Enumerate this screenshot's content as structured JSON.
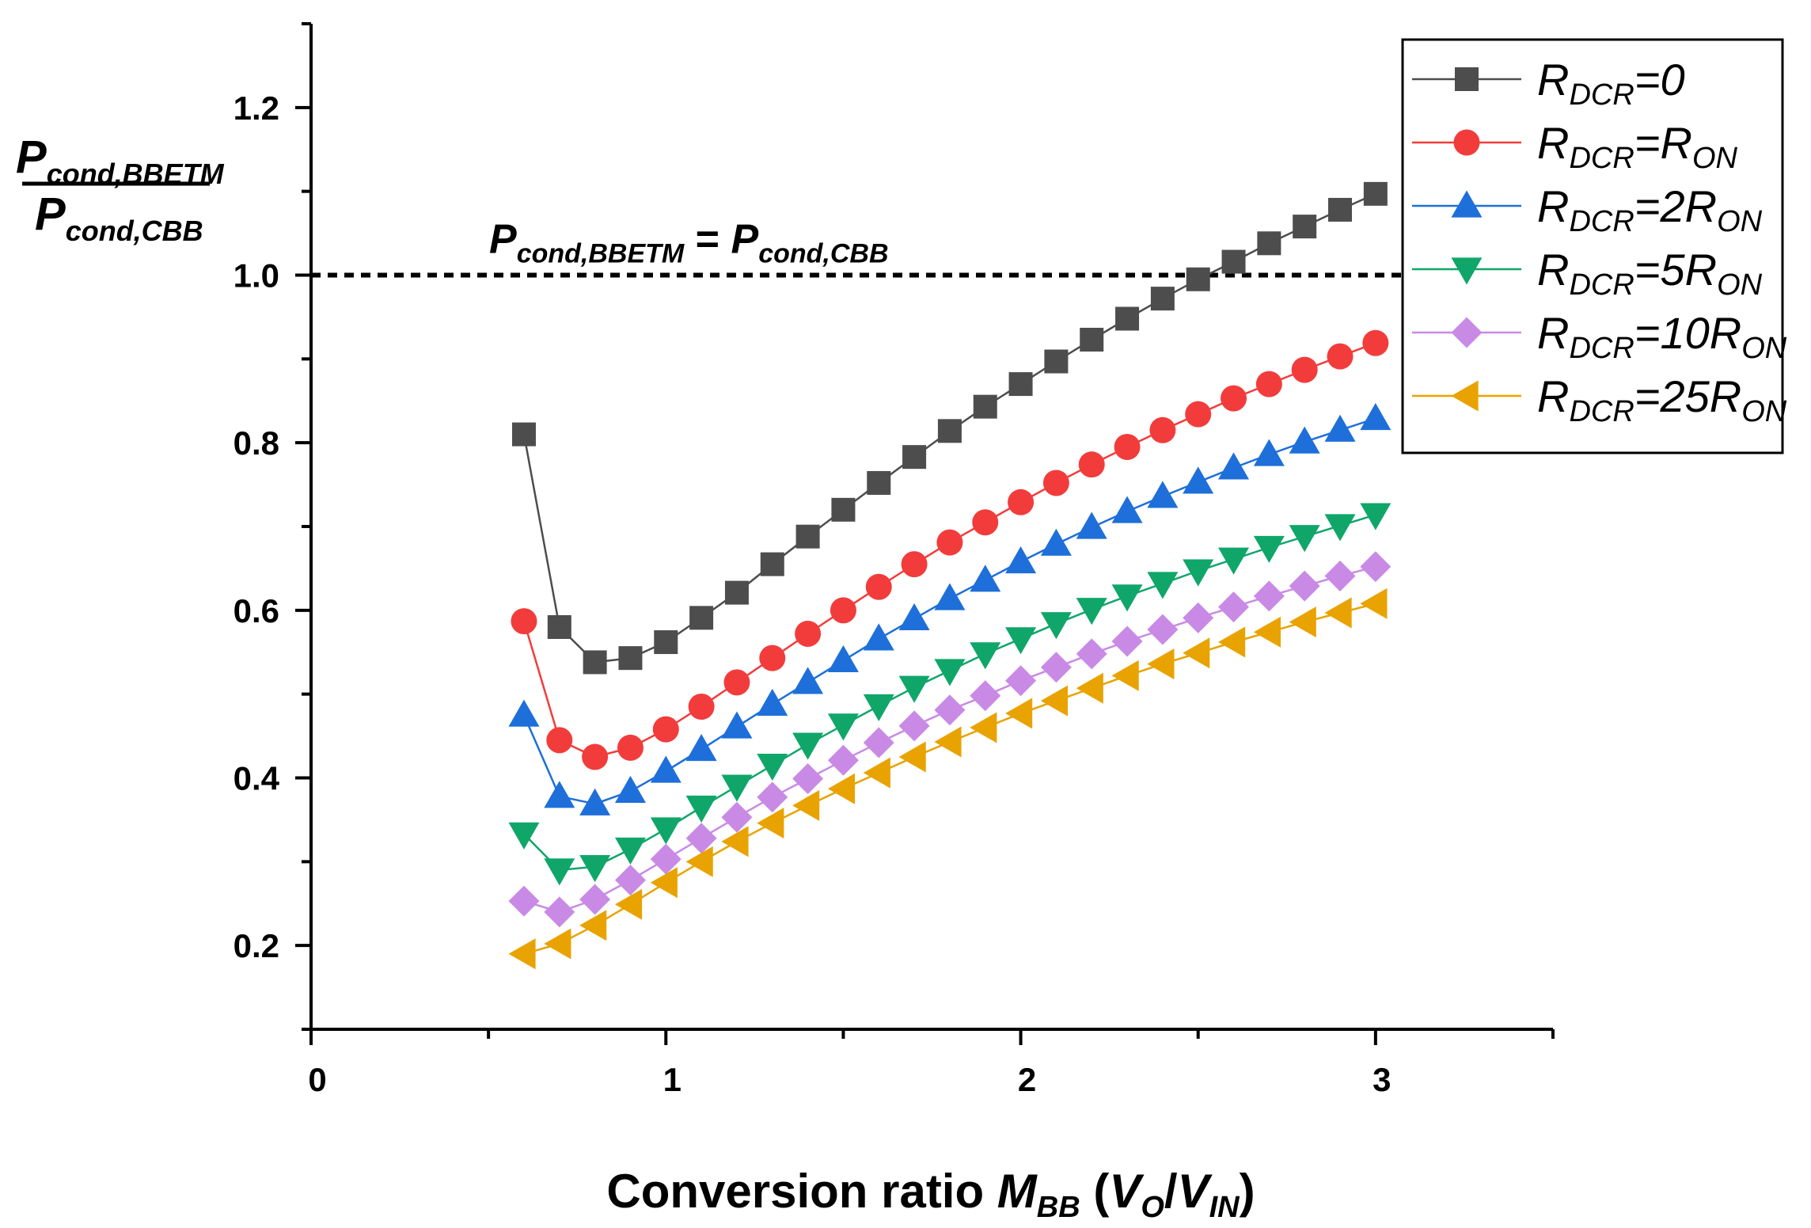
{
  "chart_data": {
    "type": "line",
    "title": "",
    "xlabel": {
      "prefix": "Conversion ratio ",
      "M": "M",
      "M_sub": "BB",
      "open": " (",
      "V1": "V",
      "V1_sub": "O",
      "slash": "/",
      "V2": "V",
      "V2_sub": "IN",
      "close": ")"
    },
    "ylabel": {
      "num": "P",
      "num_sub": "cond,BBETM",
      "den": "P",
      "den_sub": "cond,CBB"
    },
    "xlim": [
      0,
      3.5
    ],
    "ylim": [
      0.1,
      1.3
    ],
    "x_ticks": [
      "0",
      "1",
      "2",
      "3"
    ],
    "y_ticks": [
      "0.2",
      "0.4",
      "0.6",
      "0.8",
      "1.0",
      "1.2"
    ],
    "reference_line": {
      "y": 1.0,
      "label": {
        "left": "P",
        "left_sub": "cond,BBETM",
        "eq": " = ",
        "right": "P",
        "right_sub": "cond,CBB"
      }
    },
    "x": [
      0.6,
      0.7,
      0.8,
      0.9,
      1.0,
      1.1,
      1.2,
      1.3,
      1.4,
      1.5,
      1.6,
      1.7,
      1.8,
      1.9,
      2.0,
      2.1,
      2.2,
      2.3,
      2.4,
      2.5,
      2.6,
      2.7,
      2.8,
      2.9,
      3.0
    ],
    "legend_position": "top-right",
    "series": [
      {
        "name": "RDCR=0",
        "label": {
          "R": "R",
          "sub": "DCR",
          "eq": "=0",
          "rhs_sub": ""
        },
        "color": "#4d4d4d",
        "marker": "square",
        "values": [
          0.81,
          0.58,
          0.538,
          0.543,
          0.562,
          0.591,
          0.621,
          0.655,
          0.688,
          0.72,
          0.752,
          0.783,
          0.814,
          0.843,
          0.87,
          0.897,
          0.923,
          0.948,
          0.972,
          0.995,
          1.016,
          1.038,
          1.058,
          1.078,
          1.097
        ]
      },
      {
        "name": "RDCR=RON",
        "label": {
          "R": "R",
          "sub": "DCR",
          "eq": "=R",
          "rhs_sub": "ON"
        },
        "color": "#f23c3c",
        "marker": "circle",
        "values": [
          0.587,
          0.445,
          0.425,
          0.436,
          0.458,
          0.485,
          0.514,
          0.543,
          0.572,
          0.6,
          0.628,
          0.655,
          0.681,
          0.705,
          0.729,
          0.752,
          0.774,
          0.795,
          0.815,
          0.834,
          0.853,
          0.87,
          0.887,
          0.903,
          0.919
        ]
      },
      {
        "name": "RDCR=2RON",
        "label": {
          "R": "R",
          "sub": "DCR",
          "eq": "=2R",
          "rhs_sub": "ON"
        },
        "color": "#1e6fd9",
        "marker": "triangle-up",
        "values": [
          0.475,
          0.378,
          0.369,
          0.384,
          0.408,
          0.434,
          0.461,
          0.488,
          0.514,
          0.54,
          0.566,
          0.59,
          0.614,
          0.636,
          0.658,
          0.679,
          0.699,
          0.718,
          0.736,
          0.753,
          0.77,
          0.786,
          0.801,
          0.815,
          0.829
        ]
      },
      {
        "name": "RDCR=5RON",
        "label": {
          "R": "R",
          "sub": "DCR",
          "eq": "=5R",
          "rhs_sub": "ON"
        },
        "color": "#10a66a",
        "marker": "triangle-down",
        "values": [
          0.333,
          0.29,
          0.294,
          0.315,
          0.339,
          0.365,
          0.39,
          0.415,
          0.44,
          0.463,
          0.486,
          0.508,
          0.528,
          0.548,
          0.566,
          0.584,
          0.601,
          0.617,
          0.632,
          0.647,
          0.661,
          0.675,
          0.688,
          0.701,
          0.714
        ]
      },
      {
        "name": "RDCR=10RON",
        "label": {
          "R": "R",
          "sub": "DCR",
          "eq": "=10R",
          "rhs_sub": "ON"
        },
        "color": "#c98ae6",
        "marker": "diamond",
        "values": [
          0.253,
          0.24,
          0.255,
          0.278,
          0.303,
          0.328,
          0.353,
          0.377,
          0.399,
          0.421,
          0.442,
          0.462,
          0.481,
          0.498,
          0.516,
          0.532,
          0.548,
          0.563,
          0.577,
          0.591,
          0.604,
          0.617,
          0.629,
          0.641,
          0.652
        ]
      },
      {
        "name": "RDCR=25RON",
        "label": {
          "R": "R",
          "sub": "DCR",
          "eq": "=25R",
          "rhs_sub": "ON"
        },
        "color": "#e8a300",
        "marker": "triangle-left",
        "values": [
          0.19,
          0.202,
          0.224,
          0.249,
          0.275,
          0.3,
          0.324,
          0.346,
          0.367,
          0.387,
          0.406,
          0.425,
          0.443,
          0.46,
          0.477,
          0.492,
          0.507,
          0.522,
          0.536,
          0.549,
          0.562,
          0.574,
          0.586,
          0.597,
          0.608
        ]
      }
    ]
  }
}
